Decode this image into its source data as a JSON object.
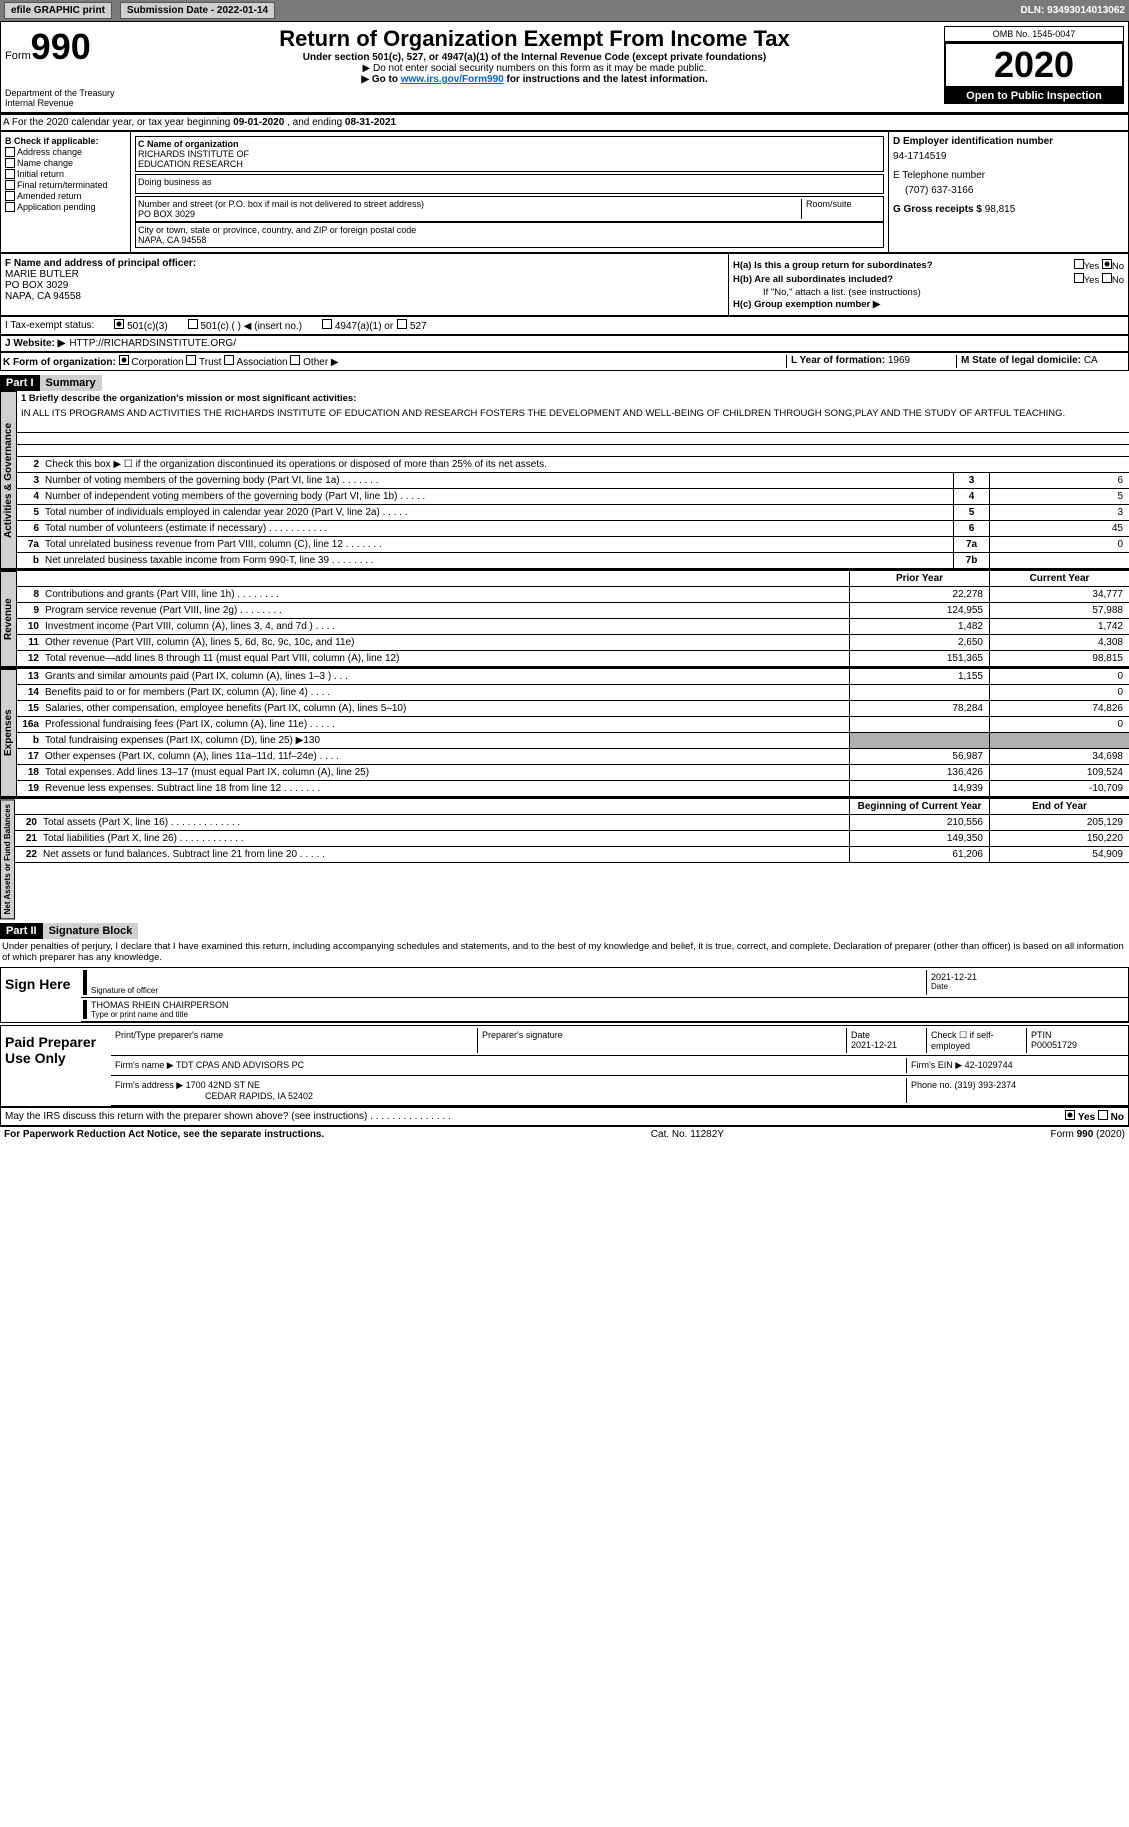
{
  "top_bar": {
    "btn_efile": "efile GRAPHIC print",
    "submission_date_label": "Submission Date - 2022-01-14",
    "dln": "DLN: 93493014013062"
  },
  "header": {
    "form_prefix": "Form",
    "form_number": "990",
    "dept": "Department of the Treasury",
    "irs": "Internal Revenue",
    "title": "Return of Organization Exempt From Income Tax",
    "subtitle1": "Under section 501(c), 527, or 4947(a)(1) of the Internal Revenue Code (except private foundations)",
    "subtitle2": "▶ Do not enter social security numbers on this form as it may be made public.",
    "subtitle3_pre": "▶ Go to ",
    "subtitle3_link": "www.irs.gov/Form990",
    "subtitle3_post": " for instructions and the latest information.",
    "omb": "OMB No. 1545-0047",
    "year": "2020",
    "open_public": "Open to Public Inspection"
  },
  "section_a": {
    "text_pre": "A For the 2020 calendar year, or tax year beginning ",
    "start": "09-01-2020",
    "mid": " , and ending ",
    "end": "08-31-2021"
  },
  "check_col": {
    "header": "B Check if applicable:",
    "items": [
      "Address change",
      "Name change",
      "Initial return",
      "Final return/terminated",
      "Amended return",
      "Application pending"
    ]
  },
  "org": {
    "name_label": "C Name of organization",
    "name1": "RICHARDS INSTITUTE OF",
    "name2": "EDUCATION RESEARCH",
    "dba_label": "Doing business as",
    "street_label": "Number and street (or P.O. box if mail is not delivered to street address)",
    "room_label": "Room/suite",
    "street": "PO BOX 3029",
    "city_label": "City or town, state or province, country, and ZIP or foreign postal code",
    "city": "NAPA, CA  94558"
  },
  "right_col": {
    "d_label": "D Employer identification number",
    "ein": "94-1714519",
    "e_label": "E Telephone number",
    "phone": "(707) 637-3166",
    "g_label": "G Gross receipts $ ",
    "g_val": "98,815"
  },
  "f_section": {
    "f_label": "F Name and address of principal officer:",
    "name": "MARIE BUTLER",
    "addr1": "PO BOX 3029",
    "addr2": "NAPA, CA  94558",
    "ha_label": "H(a)  Is this a group return for subordinates?",
    "yes": "Yes",
    "no": "No",
    "hb_label": "H(b)  Are all subordinates included?",
    "hb_note": "If \"No,\" attach a list. (see instructions)",
    "hc_label": "H(c)  Group exemption number ▶"
  },
  "i_row": {
    "label": "I  Tax-exempt status:",
    "opt1": "501(c)(3)",
    "opt2": "501(c) (  ) ◀ (insert no.)",
    "opt3": "4947(a)(1) or",
    "opt4": "527"
  },
  "j_row": {
    "label": "J  Website: ▶",
    "value": "HTTP://RICHARDSINSTITUTE.ORG/"
  },
  "k_row": {
    "label": "K Form of organization:",
    "opt1": "Corporation",
    "opt2": "Trust",
    "opt3": "Association",
    "opt4": "Other ▶",
    "l_label": "L Year of formation: ",
    "l_val": "1969",
    "m_label": "M State of legal domicile: ",
    "m_val": "CA"
  },
  "part1": {
    "header": "Part I",
    "title": "Summary",
    "line1_label": "1  Briefly describe the organization's mission or most significant activities:",
    "mission": "IN ALL ITS PROGRAMS AND ACTIVITIES THE RICHARDS INSTITUTE OF EDUCATION AND RESEARCH FOSTERS THE DEVELOPMENT AND WELL-BEING OF CHILDREN THROUGH SONG,PLAY AND THE STUDY OF ARTFUL TEACHING."
  },
  "governance": {
    "label": "Activities & Governance",
    "rows": [
      {
        "n": "2",
        "t": "Check this box ▶ ☐ if the organization discontinued its operations or disposed of more than 25% of its net assets."
      },
      {
        "n": "3",
        "t": "Number of voting members of the governing body (Part VI, line 1a)  .  .  .  .  .  .  .",
        "box": "3",
        "val": "6"
      },
      {
        "n": "4",
        "t": "Number of independent voting members of the governing body (Part VI, line 1b)  .  .  .  .  .",
        "box": "4",
        "val": "5"
      },
      {
        "n": "5",
        "t": "Total number of individuals employed in calendar year 2020 (Part V, line 2a)  .  .  .  .  .",
        "box": "5",
        "val": "3"
      },
      {
        "n": "6",
        "t": "Total number of volunteers (estimate if necessary)  .  .  .  .  .  .  .  .  .  .  .",
        "box": "6",
        "val": "45"
      },
      {
        "n": "7a",
        "t": "Total unrelated business revenue from Part VIII, column (C), line 12  .  .  .  .  .  .  .",
        "box": "7a",
        "val": "0"
      },
      {
        "n": "b",
        "t": "Net unrelated business taxable income from Form 990-T, line 39  .  .  .  .  .  .  .  .",
        "box": "7b",
        "val": ""
      }
    ]
  },
  "revenue": {
    "label": "Revenue",
    "prior_header": "Prior Year",
    "current_header": "Current Year",
    "rows": [
      {
        "n": "8",
        "t": "Contributions and grants (Part VIII, line 1h)  .  .  .  .  .  .  .  .",
        "prior": "22,278",
        "curr": "34,777"
      },
      {
        "n": "9",
        "t": "Program service revenue (Part VIII, line 2g)  .  .  .  .  .  .  .  .",
        "prior": "124,955",
        "curr": "57,988"
      },
      {
        "n": "10",
        "t": "Investment income (Part VIII, column (A), lines 3, 4, and 7d )  .  .  .  .",
        "prior": "1,482",
        "curr": "1,742"
      },
      {
        "n": "11",
        "t": "Other revenue (Part VIII, column (A), lines 5, 6d, 8c, 9c, 10c, and 11e)",
        "prior": "2,650",
        "curr": "4,308"
      },
      {
        "n": "12",
        "t": "Total revenue—add lines 8 through 11 (must equal Part VIII, column (A), line 12)",
        "prior": "151,365",
        "curr": "98,815"
      }
    ]
  },
  "expenses": {
    "label": "Expenses",
    "rows": [
      {
        "n": "13",
        "t": "Grants and similar amounts paid (Part IX, column (A), lines 1–3 )  .  .  .",
        "prior": "1,155",
        "curr": "0"
      },
      {
        "n": "14",
        "t": "Benefits paid to or for members (Part IX, column (A), line 4)  .  .  .  .",
        "prior": "",
        "curr": "0"
      },
      {
        "n": "15",
        "t": "Salaries, other compensation, employee benefits (Part IX, column (A), lines 5–10)",
        "prior": "78,284",
        "curr": "74,826"
      },
      {
        "n": "16a",
        "t": "Professional fundraising fees (Part IX, column (A), line 11e)  .  .  .  .  .",
        "prior": "",
        "curr": "0"
      },
      {
        "n": "b",
        "t": "Total fundraising expenses (Part IX, column (D), line 25) ▶130",
        "prior": "grey",
        "curr": "grey"
      },
      {
        "n": "17",
        "t": "Other expenses (Part IX, column (A), lines 11a–11d, 11f–24e)  .  .  .  .",
        "prior": "56,987",
        "curr": "34,698"
      },
      {
        "n": "18",
        "t": "Total expenses. Add lines 13–17 (must equal Part IX, column (A), line 25)",
        "prior": "136,426",
        "curr": "109,524"
      },
      {
        "n": "19",
        "t": "Revenue less expenses. Subtract line 18 from line 12  .  .  .  .  .  .  .",
        "prior": "14,939",
        "curr": "-10,709"
      }
    ]
  },
  "netassets": {
    "label": "Net Assets or Fund Balances",
    "begin_header": "Beginning of Current Year",
    "end_header": "End of Year",
    "rows": [
      {
        "n": "20",
        "t": "Total assets (Part X, line 16)  .  .  .  .  .  .  .  .  .  .  .  .  .",
        "prior": "210,556",
        "curr": "205,129"
      },
      {
        "n": "21",
        "t": "Total liabilities (Part X, line 26)  .  .  .  .  .  .  .  .  .  .  .  .",
        "prior": "149,350",
        "curr": "150,220"
      },
      {
        "n": "22",
        "t": "Net assets or fund balances. Subtract line 21 from line 20  .  .  .  .  .",
        "prior": "61,206",
        "curr": "54,909"
      }
    ]
  },
  "part2": {
    "header": "Part II",
    "title": "Signature Block",
    "penalty": "Under penalties of perjury, I declare that I have examined this return, including accompanying schedules and statements, and to the best of my knowledge and belief, it is true, correct, and complete. Declaration of preparer (other than officer) is based on all information of which preparer has any knowledge."
  },
  "sign_here": {
    "label": "Sign Here",
    "sig_label": "Signature of officer",
    "date_label": "Date",
    "date": "2021-12-21",
    "name": "THOMAS RHEIN CHAIRPERSON",
    "name_label": "Type or print name and title"
  },
  "paid_preparer": {
    "label": "Paid Preparer Use Only",
    "print_name_label": "Print/Type preparer's name",
    "sig_label": "Preparer's signature",
    "date_label": "Date",
    "date": "2021-12-21",
    "check_label": "Check ☐ if self-employed",
    "ptin_label": "PTIN",
    "ptin": "P00051729",
    "firm_name_label": "Firm's name    ▶ ",
    "firm_name": "TDT CPAS AND ADVISORS PC",
    "firm_ein_label": "Firm's EIN ▶ ",
    "firm_ein": "42-1029744",
    "firm_addr_label": "Firm's address ▶ ",
    "firm_addr1": "1700 42ND ST NE",
    "firm_addr2": "CEDAR RAPIDS, IA  52402",
    "phone_label": "Phone no. ",
    "phone": "(319) 393-2374"
  },
  "footer": {
    "discuss": "May the IRS discuss this return with the preparer shown above? (see instructions)  .  .  .  .  .  .  .  .  .  .  .  .  .  .  .",
    "yes": "Yes",
    "no": "No",
    "paperwork": "For Paperwork Reduction Act Notice, see the separate instructions.",
    "cat": "Cat. No. 11282Y",
    "form": "Form 990 (2020)"
  }
}
